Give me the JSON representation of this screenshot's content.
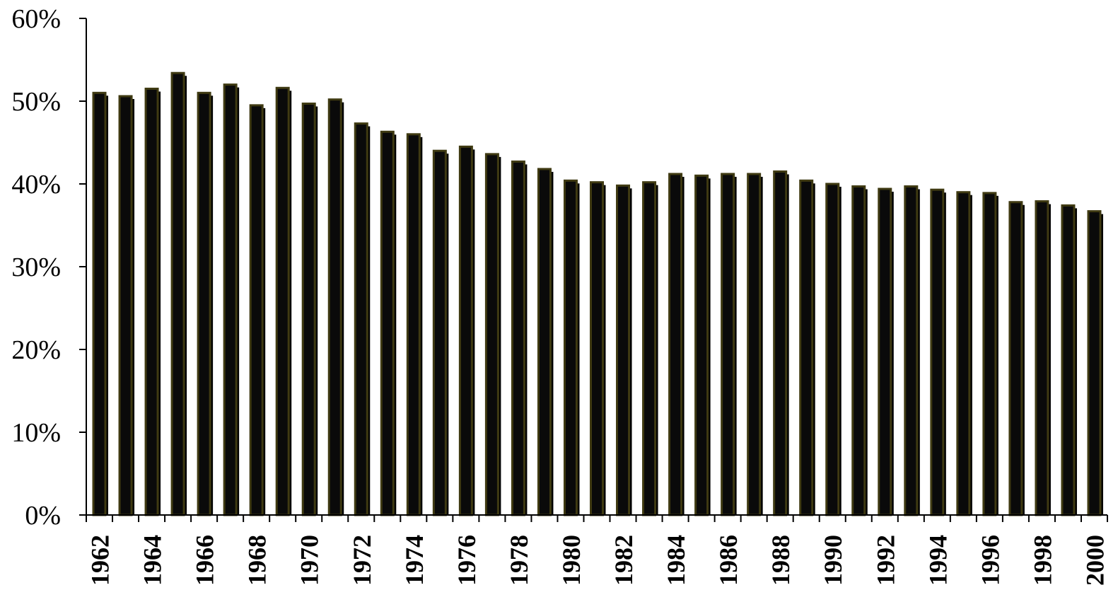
{
  "chart_data": {
    "type": "bar",
    "title": "",
    "xlabel": "",
    "ylabel": "",
    "ylim": [
      0,
      60
    ],
    "y_ticks": [
      "0%",
      "10%",
      "20%",
      "30%",
      "40%",
      "50%",
      "60%"
    ],
    "y_tick_values": [
      0,
      10,
      20,
      30,
      40,
      50,
      60
    ],
    "x_tick_labels": [
      "1962",
      "1964",
      "1966",
      "1968",
      "1970",
      "1972",
      "1974",
      "1976",
      "1978",
      "1980",
      "1982",
      "1984",
      "1986",
      "1988",
      "1990",
      "1992",
      "1994",
      "1996",
      "1998",
      "2000"
    ],
    "categories": [
      "1962",
      "1963",
      "1964",
      "1965",
      "1966",
      "1967",
      "1968",
      "1969",
      "1970",
      "1971",
      "1972",
      "1973",
      "1974",
      "1975",
      "1976",
      "1977",
      "1978",
      "1979",
      "1980",
      "1981",
      "1982",
      "1983",
      "1984",
      "1985",
      "1986",
      "1987",
      "1988",
      "1989",
      "1990",
      "1991",
      "1992",
      "1993",
      "1994",
      "1995",
      "1996",
      "1997",
      "1998",
      "1999",
      "2000"
    ],
    "values": [
      51.0,
      50.6,
      51.5,
      53.4,
      51.0,
      52.0,
      49.5,
      51.6,
      49.7,
      50.2,
      47.3,
      46.3,
      46.0,
      44.0,
      44.5,
      43.6,
      42.7,
      41.8,
      40.4,
      40.2,
      39.8,
      40.2,
      41.2,
      41.0,
      41.2,
      41.2,
      41.5,
      40.4,
      40.0,
      39.7,
      39.4,
      39.7,
      39.3,
      39.0,
      38.9,
      37.8,
      37.9,
      37.4,
      36.7
    ],
    "bar_color": "#0a0a0a",
    "bar_outline_color": "#3f3a12",
    "grid": false,
    "legend": "none"
  }
}
